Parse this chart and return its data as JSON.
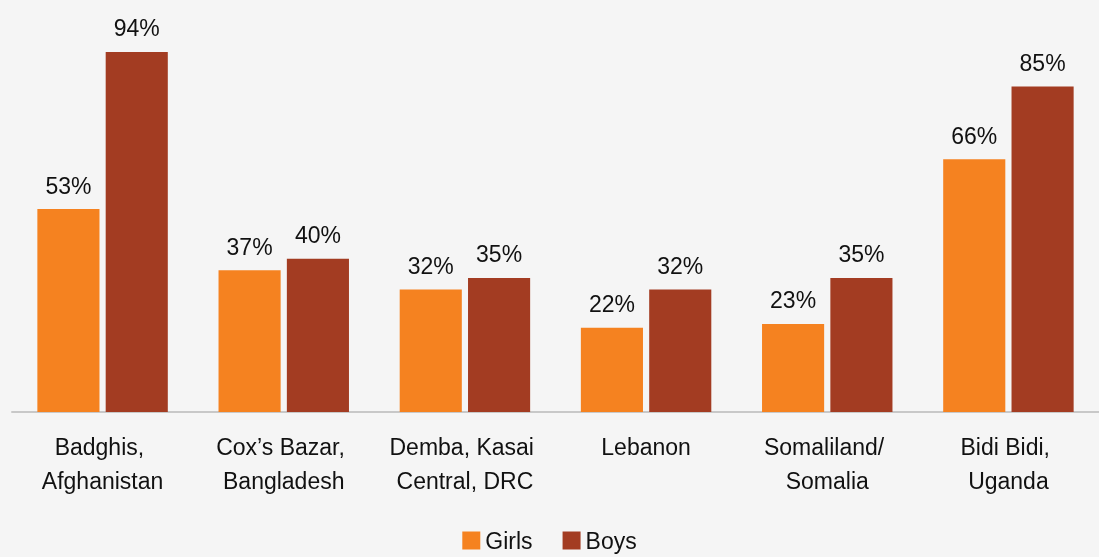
{
  "chart_data": {
    "type": "bar",
    "categories": [
      "Badghis, Afghanistan",
      "Cox’s Bazar, Bangladesh",
      "Demba, Kasai Central, DRC",
      "Lebanon",
      "Somaliland/ Somalia",
      "Bidi Bidi, Uganda"
    ],
    "series": [
      {
        "name": "Girls",
        "color": "#f58220",
        "values": [
          53,
          37,
          32,
          22,
          23,
          66
        ],
        "value_labels": [
          "53%",
          "37%",
          "32%",
          "22%",
          "23%",
          "66%"
        ]
      },
      {
        "name": "Boys",
        "color": "#a33c22",
        "values": [
          94,
          40,
          35,
          32,
          35,
          85
        ],
        "value_labels": [
          "94%",
          "40%",
          "35%",
          "32%",
          "35%",
          "85%"
        ]
      }
    ],
    "legend": "bottom"
  }
}
